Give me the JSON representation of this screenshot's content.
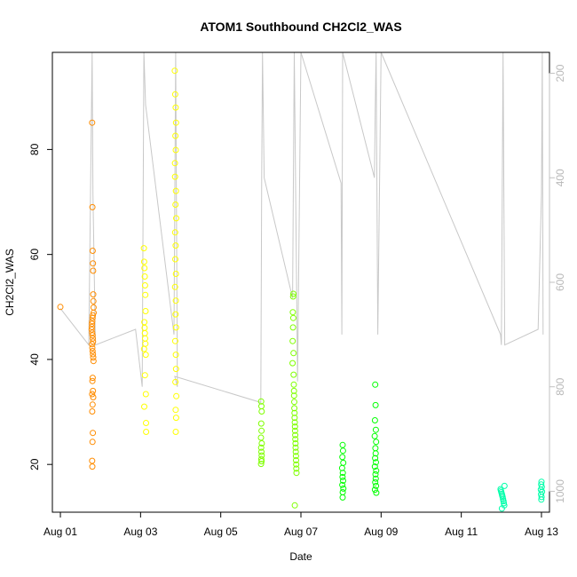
{
  "chart_data": {
    "type": "scatter",
    "title": "ATOM1 Southbound CH2Cl2_WAS",
    "xlabel": "Date",
    "ylabel": "CH2Cl2_WAS",
    "x_axis": {
      "kind": "date",
      "range": [
        "2016-07-31T19:12",
        "2016-08-13T04:48"
      ],
      "ticks": [
        "2016-08-01",
        "2016-08-03",
        "2016-08-05",
        "2016-08-07",
        "2016-08-09",
        "2016-08-11",
        "2016-08-13"
      ],
      "tick_labels": [
        "Aug 01",
        "Aug 03",
        "Aug 05",
        "Aug 07",
        "Aug 09",
        "Aug 11",
        "Aug 13"
      ]
    },
    "y_axis": {
      "range": [
        10.9,
        98.5
      ],
      "ticks": [
        20,
        40,
        60,
        80
      ]
    },
    "y2_axis": {
      "label": "",
      "reversed": true,
      "range": [
        1040,
        160
      ],
      "ticks": [
        200,
        400,
        600,
        800,
        1000
      ],
      "color": "#c0c0c0"
    },
    "series": [
      {
        "color": "#ff8c00",
        "points": [
          [
            "2016-08-01T00:00",
            50
          ],
          [
            "2016-08-01T19:00",
            85.1
          ],
          [
            "2016-08-01T19:10",
            69
          ],
          [
            "2016-08-01T19:20",
            60.7
          ],
          [
            "2016-08-01T19:30",
            58.3
          ],
          [
            "2016-08-01T19:35",
            56.9
          ],
          [
            "2016-08-01T19:40",
            52.4
          ],
          [
            "2016-08-01T19:45",
            51.1
          ],
          [
            "2016-08-01T19:50",
            49.9
          ],
          [
            "2016-08-01T19:55",
            48.9
          ],
          [
            "2016-08-01T19:25",
            48.4
          ],
          [
            "2016-08-01T19:15",
            47.9
          ],
          [
            "2016-08-01T19:05",
            47.3
          ],
          [
            "2016-08-01T18:55",
            46.8
          ],
          [
            "2016-08-01T18:50",
            46.2
          ],
          [
            "2016-08-01T18:45",
            45.7
          ],
          [
            "2016-08-01T19:02",
            45.1
          ],
          [
            "2016-08-01T19:12",
            44.6
          ],
          [
            "2016-08-01T19:22",
            44.0
          ],
          [
            "2016-08-01T19:32",
            43.4
          ],
          [
            "2016-08-01T18:58",
            42.9
          ],
          [
            "2016-08-01T19:08",
            42.2
          ],
          [
            "2016-08-01T19:18",
            41.6
          ],
          [
            "2016-08-01T19:28",
            41.0
          ],
          [
            "2016-08-01T19:38",
            40.4
          ],
          [
            "2016-08-01T19:48",
            39.7
          ],
          [
            "2016-08-01T19:20",
            36.5
          ],
          [
            "2016-08-01T19:10",
            35.9
          ],
          [
            "2016-08-01T19:30",
            34.0
          ],
          [
            "2016-08-01T19:00",
            33.4
          ],
          [
            "2016-08-01T19:40",
            32.8
          ],
          [
            "2016-08-01T19:15",
            31.4
          ],
          [
            "2016-08-01T19:05",
            30.1
          ],
          [
            "2016-08-01T19:25",
            26.0
          ],
          [
            "2016-08-01T19:12",
            24.3
          ],
          [
            "2016-08-01T19:02",
            20.7
          ],
          [
            "2016-08-01T19:06",
            19.6
          ]
        ]
      },
      {
        "color": "#ffff00",
        "points": [
          [
            "2016-08-03T02:00",
            61.2
          ],
          [
            "2016-08-03T02:10",
            58.6
          ],
          [
            "2016-08-03T02:20",
            57.4
          ],
          [
            "2016-08-03T02:30",
            55.8
          ],
          [
            "2016-08-03T02:40",
            54.1
          ],
          [
            "2016-08-03T02:50",
            52.3
          ],
          [
            "2016-08-03T03:00",
            49.2
          ],
          [
            "2016-08-03T02:15",
            47.1
          ],
          [
            "2016-08-03T02:25",
            46.0
          ],
          [
            "2016-08-03T02:35",
            45.0
          ],
          [
            "2016-08-03T02:45",
            44.0
          ],
          [
            "2016-08-03T02:55",
            43.0
          ],
          [
            "2016-08-03T02:05",
            42.0
          ],
          [
            "2016-08-03T03:05",
            40.9
          ],
          [
            "2016-08-03T02:38",
            37.0
          ],
          [
            "2016-08-03T03:10",
            33.4
          ],
          [
            "2016-08-03T02:12",
            31.0
          ],
          [
            "2016-08-03T03:15",
            27.9
          ],
          [
            "2016-08-03T03:20",
            26.2
          ],
          [
            "2016-08-03T20:30",
            95.0
          ],
          [
            "2016-08-03T20:45",
            90.5
          ],
          [
            "2016-08-03T21:00",
            88.0
          ],
          [
            "2016-08-03T21:15",
            85.1
          ],
          [
            "2016-08-03T20:50",
            82.6
          ],
          [
            "2016-08-03T21:05",
            79.9
          ],
          [
            "2016-08-03T20:35",
            77.4
          ],
          [
            "2016-08-03T20:40",
            74.8
          ],
          [
            "2016-08-03T21:10",
            72.1
          ],
          [
            "2016-08-03T20:55",
            69.5
          ],
          [
            "2016-08-03T21:20",
            66.9
          ],
          [
            "2016-08-03T20:42",
            64.2
          ],
          [
            "2016-08-03T21:02",
            61.7
          ],
          [
            "2016-08-03T20:48",
            59.1
          ],
          [
            "2016-08-03T21:12",
            56.3
          ],
          [
            "2016-08-03T20:38",
            53.8
          ],
          [
            "2016-08-03T21:08",
            51.2
          ],
          [
            "2016-08-03T20:58",
            48.6
          ],
          [
            "2016-08-03T21:18",
            46.1
          ],
          [
            "2016-08-03T20:44",
            43.5
          ],
          [
            "2016-08-03T21:06",
            40.9
          ],
          [
            "2016-08-03T21:14",
            38.2
          ],
          [
            "2016-08-03T20:52",
            35.7
          ],
          [
            "2016-08-03T21:22",
            33.0
          ],
          [
            "2016-08-03T21:00",
            30.4
          ],
          [
            "2016-08-03T21:16",
            28.9
          ],
          [
            "2016-08-03T21:04",
            26.2
          ]
        ]
      },
      {
        "color": "#7fff00",
        "points": [
          [
            "2016-08-06T00:10",
            32.0
          ],
          [
            "2016-08-06T00:20",
            31.1
          ],
          [
            "2016-08-06T00:30",
            30.1
          ],
          [
            "2016-08-06T00:15",
            27.8
          ],
          [
            "2016-08-06T00:25",
            26.4
          ],
          [
            "2016-08-06T00:05",
            25.1
          ],
          [
            "2016-08-06T00:35",
            24.0
          ],
          [
            "2016-08-06T00:12",
            23.2
          ],
          [
            "2016-08-06T00:22",
            22.4
          ],
          [
            "2016-08-06T00:32",
            21.7
          ],
          [
            "2016-08-06T00:18",
            21.0
          ],
          [
            "2016-08-06T00:28",
            20.6
          ],
          [
            "2016-08-06T00:08",
            20.1
          ],
          [
            "2016-08-06T19:30",
            52.5
          ],
          [
            "2016-08-06T19:20",
            52.0
          ],
          [
            "2016-08-06T19:10",
            49.0
          ],
          [
            "2016-08-06T19:25",
            47.9
          ],
          [
            "2016-08-06T19:15",
            46.1
          ],
          [
            "2016-08-06T19:05",
            43.5
          ],
          [
            "2016-08-06T19:35",
            41.2
          ],
          [
            "2016-08-06T19:00",
            39.3
          ],
          [
            "2016-08-06T19:40",
            37.1
          ],
          [
            "2016-08-06T19:45",
            35.2
          ],
          [
            "2016-08-06T19:50",
            34.0
          ],
          [
            "2016-08-06T19:55",
            33.1
          ],
          [
            "2016-08-06T20:00",
            31.9
          ],
          [
            "2016-08-06T20:05",
            30.7
          ],
          [
            "2016-08-06T20:10",
            29.8
          ],
          [
            "2016-08-06T20:15",
            28.9
          ],
          [
            "2016-08-06T20:20",
            28.0
          ],
          [
            "2016-08-06T20:25",
            27.2
          ],
          [
            "2016-08-06T20:30",
            26.4
          ],
          [
            "2016-08-06T20:35",
            25.6
          ],
          [
            "2016-08-06T20:40",
            24.8
          ],
          [
            "2016-08-06T20:45",
            24.0
          ],
          [
            "2016-08-06T20:50",
            23.2
          ],
          [
            "2016-08-06T20:55",
            22.4
          ],
          [
            "2016-08-06T21:00",
            21.6
          ],
          [
            "2016-08-06T21:05",
            20.8
          ],
          [
            "2016-08-06T21:10",
            20.0
          ],
          [
            "2016-08-06T21:15",
            19.2
          ],
          [
            "2016-08-06T21:20",
            18.4
          ],
          [
            "2016-08-06T20:20",
            12.2
          ]
        ]
      },
      {
        "color": "#00ff00",
        "points": [
          [
            "2016-08-08T01:00",
            23.7
          ],
          [
            "2016-08-08T01:10",
            22.6
          ],
          [
            "2016-08-08T00:50",
            21.4
          ],
          [
            "2016-08-08T01:20",
            20.3
          ],
          [
            "2016-08-08T00:40",
            19.3
          ],
          [
            "2016-08-08T01:05",
            18.4
          ],
          [
            "2016-08-08T00:55",
            17.6
          ],
          [
            "2016-08-08T01:15",
            16.9
          ],
          [
            "2016-08-08T00:45",
            16.1
          ],
          [
            "2016-08-08T01:25",
            15.4
          ],
          [
            "2016-08-08T01:02",
            14.7
          ],
          [
            "2016-08-08T00:58",
            13.7
          ],
          [
            "2016-08-08T20:30",
            35.2
          ],
          [
            "2016-08-08T20:40",
            31.3
          ],
          [
            "2016-08-08T20:20",
            28.4
          ],
          [
            "2016-08-08T20:50",
            26.6
          ],
          [
            "2016-08-08T20:10",
            25.4
          ],
          [
            "2016-08-08T21:00",
            24.3
          ],
          [
            "2016-08-08T20:35",
            23.1
          ],
          [
            "2016-08-08T20:45",
            22.1
          ],
          [
            "2016-08-08T20:25",
            21.2
          ],
          [
            "2016-08-08T20:55",
            20.4
          ],
          [
            "2016-08-08T20:15",
            19.6
          ],
          [
            "2016-08-08T21:05",
            18.8
          ],
          [
            "2016-08-08T20:38",
            18.1
          ],
          [
            "2016-08-08T20:48",
            17.3
          ],
          [
            "2016-08-08T20:28",
            16.6
          ],
          [
            "2016-08-08T20:58",
            15.9
          ],
          [
            "2016-08-08T20:18",
            15.2
          ],
          [
            "2016-08-08T21:08",
            14.6
          ]
        ]
      },
      {
        "color": "#00ffaa",
        "points": [
          [
            "2016-08-11T23:30",
            15.3
          ],
          [
            "2016-08-11T23:45",
            15.0
          ],
          [
            "2016-08-12T00:00",
            14.7
          ],
          [
            "2016-08-12T00:15",
            14.4
          ],
          [
            "2016-08-12T00:30",
            14.1
          ],
          [
            "2016-08-12T00:45",
            13.8
          ],
          [
            "2016-08-12T01:00",
            13.4
          ],
          [
            "2016-08-12T01:15",
            13.0
          ],
          [
            "2016-08-12T01:30",
            12.6
          ],
          [
            "2016-08-12T01:45",
            12.2
          ],
          [
            "2016-08-12T00:20",
            11.6
          ],
          [
            "2016-08-12T01:50",
            15.9
          ],
          [
            "2016-08-13T00:00",
            16.7
          ],
          [
            "2016-08-12T23:50",
            16.2
          ],
          [
            "2016-08-13T00:10",
            15.7
          ],
          [
            "2016-08-12T23:40",
            15.2
          ],
          [
            "2016-08-13T00:20",
            14.8
          ],
          [
            "2016-08-12T23:45",
            14.3
          ],
          [
            "2016-08-13T00:05",
            13.8
          ],
          [
            "2016-08-12T23:55",
            13.3
          ]
        ]
      }
    ],
    "secondary_line": {
      "color": "#c8c8c8",
      "points": [
        [
          "2016-08-01T00:00",
          650
        ],
        [
          "2016-08-01T17:00",
          720
        ],
        [
          "2016-08-01T19:00",
          160
        ],
        [
          "2016-08-01T19:30",
          430
        ],
        [
          "2016-08-01T21:00",
          720
        ],
        [
          "2016-08-02T21:00",
          690
        ],
        [
          "2016-08-03T01:00",
          800
        ],
        [
          "2016-08-03T02:00",
          160
        ],
        [
          "2016-08-03T03:00",
          260
        ],
        [
          "2016-08-03T20:00",
          700
        ],
        [
          "2016-08-03T21:00",
          160
        ],
        [
          "2016-08-03T22:00",
          800
        ],
        [
          "2016-08-03T20:30",
          780
        ],
        [
          "2016-08-06T00:00",
          830
        ],
        [
          "2016-08-06T00:30",
          400
        ],
        [
          "2016-08-06T01:00",
          160
        ],
        [
          "2016-08-06T02:00",
          400
        ],
        [
          "2016-08-06T19:00",
          630
        ],
        [
          "2016-08-06T20:00",
          160
        ],
        [
          "2016-08-06T22:00",
          790
        ],
        [
          "2016-08-07T00:00",
          160
        ],
        [
          "2016-08-08T00:00",
          410
        ],
        [
          "2016-08-08T00:30",
          700
        ],
        [
          "2016-08-08T01:00",
          160
        ],
        [
          "2016-08-08T20:00",
          400
        ],
        [
          "2016-08-08T20:30",
          270
        ],
        [
          "2016-08-08T21:00",
          160
        ],
        [
          "2016-08-08T22:00",
          700
        ],
        [
          "2016-08-09T00:00",
          160
        ],
        [
          "2016-08-11T23:30",
          700
        ],
        [
          "2016-08-12T00:00",
          720
        ],
        [
          "2016-08-12T01:00",
          160
        ],
        [
          "2016-08-12T02:00",
          720
        ],
        [
          "2016-08-12T22:00",
          690
        ],
        [
          "2016-08-13T00:00",
          430
        ],
        [
          "2016-08-13T00:30",
          160
        ],
        [
          "2016-08-13T01:00",
          700
        ]
      ]
    },
    "grid": false,
    "legend": "none"
  }
}
